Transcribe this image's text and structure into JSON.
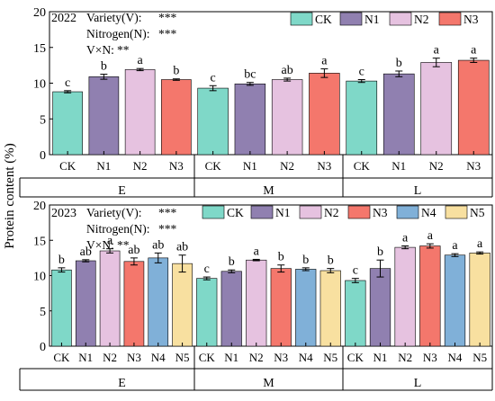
{
  "ylabel": "Protein content (%)",
  "chart_data": [
    {
      "type": "bar",
      "year": "2022",
      "stats": [
        {
          "label": "Variety(V):",
          "sig": "***"
        },
        {
          "label": "Nitrogen(N):",
          "sig": "***"
        },
        {
          "label": "V×N:",
          "sig": "**"
        }
      ],
      "groups": [
        "E",
        "M",
        "L"
      ],
      "treatments": [
        "CK",
        "N1",
        "N2",
        "N3"
      ],
      "colors": {
        "CK": "#7fd8c8",
        "N1": "#9080b0",
        "N2": "#e6c2e0",
        "N3": "#f4776c"
      },
      "ylim": [
        0,
        20
      ],
      "yticks": [
        0,
        5,
        10,
        15,
        20
      ],
      "values": [
        [
          8.8,
          10.9,
          11.9,
          10.5
        ],
        [
          9.3,
          9.9,
          10.5,
          11.4
        ],
        [
          10.3,
          11.3,
          12.9,
          13.2
        ]
      ],
      "errors": [
        [
          0.15,
          0.35,
          0.15,
          0.1
        ],
        [
          0.35,
          0.2,
          0.2,
          0.6
        ],
        [
          0.2,
          0.4,
          0.6,
          0.3
        ]
      ],
      "letters": [
        [
          "c",
          "b",
          "a",
          "b"
        ],
        [
          "c",
          "bc",
          "ab",
          "a"
        ],
        [
          "c",
          "b",
          "a",
          "a"
        ]
      ]
    },
    {
      "type": "bar",
      "year": "2023",
      "stats": [
        {
          "label": "Variety(V):",
          "sig": "***"
        },
        {
          "label": "Nitrogen(N):",
          "sig": "***"
        },
        {
          "label": "V×N:",
          "sig": "**"
        }
      ],
      "groups": [
        "E",
        "M",
        "L"
      ],
      "treatments": [
        "CK",
        "N1",
        "N2",
        "N3",
        "N4",
        "N5"
      ],
      "colors": {
        "CK": "#7fd8c8",
        "N1": "#9080b0",
        "N2": "#e6c2e0",
        "N3": "#f4776c",
        "N4": "#80b0d8",
        "N5": "#f8e0a0"
      },
      "ylim": [
        0,
        20
      ],
      "yticks": [
        0,
        5,
        10,
        15,
        20
      ],
      "values": [
        [
          10.8,
          12.1,
          13.5,
          12.0,
          12.5,
          11.7
        ],
        [
          9.6,
          10.6,
          12.2,
          11.0,
          10.9,
          10.7
        ],
        [
          9.3,
          11.0,
          14.0,
          14.2,
          12.9,
          13.2
        ]
      ],
      "errors": [
        [
          0.3,
          0.15,
          0.3,
          0.5,
          0.7,
          1.2
        ],
        [
          0.2,
          0.2,
          0.1,
          0.5,
          0.2,
          0.3
        ],
        [
          0.3,
          1.2,
          0.2,
          0.3,
          0.2,
          0.15
        ]
      ],
      "letters": [
        [
          "b",
          "ab",
          "a",
          "ab",
          "ab",
          "ab"
        ],
        [
          "c",
          "b",
          "a",
          "b",
          "b",
          "b"
        ],
        [
          "c",
          "b",
          "a",
          "a",
          "a",
          "a"
        ]
      ]
    }
  ]
}
